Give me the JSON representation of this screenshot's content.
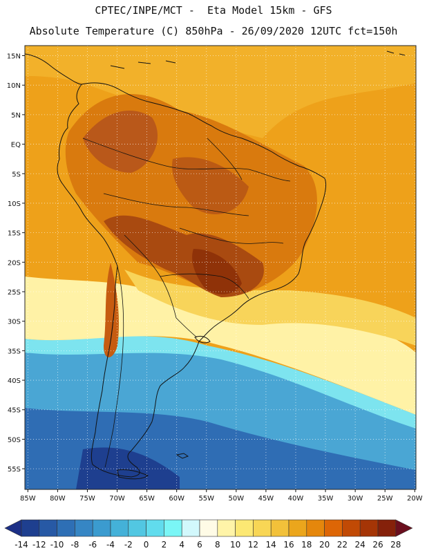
{
  "header": {
    "line1": "CPTEC/INPE/MCT -  Eta Model 15km - GFS",
    "line2": "Absolute Temperature (C) 850hPa - 26/09/2020 12UTC fct=150h"
  },
  "map": {
    "lat_labels": [
      "15N",
      "10N",
      "5N",
      "EQ",
      "5S",
      "10S",
      "15S",
      "20S",
      "25S",
      "30S",
      "35S",
      "40S",
      "45S",
      "50S",
      "55S"
    ],
    "lat_values": [
      15,
      10,
      5,
      0,
      -5,
      -10,
      -15,
      -20,
      -25,
      -30,
      -35,
      -40,
      -45,
      -50,
      -55
    ],
    "lon_labels": [
      "85W",
      "80W",
      "75W",
      "70W",
      "65W",
      "60W",
      "55W",
      "50W",
      "45W",
      "40W",
      "35W",
      "30W",
      "25W",
      "20W"
    ],
    "lon_values": [
      -85,
      -80,
      -75,
      -70,
      -65,
      -60,
      -55,
      -50,
      -45,
      -40,
      -35,
      -30,
      -25,
      -20
    ],
    "extent": {
      "lon_min": -85.5,
      "lon_max": -19.8,
      "lat_min": -58.5,
      "lat_max": 16.7
    }
  },
  "colorbar": {
    "labels": [
      "-14",
      "-12",
      "-10",
      "-8",
      "-6",
      "-4",
      "-2",
      "0",
      "2",
      "4",
      "6",
      "8",
      "10",
      "12",
      "14",
      "16",
      "18",
      "20",
      "22",
      "24",
      "26",
      "28"
    ],
    "colors": [
      "#1e3f8f",
      "#2759a5",
      "#2e6fb5",
      "#3686c4",
      "#3b9bcf",
      "#44b1d8",
      "#52c7e2",
      "#61dced",
      "#7af6f6",
      "#d2f8fc",
      "#fffbe6",
      "#fff4a8",
      "#fce873",
      "#f8d655",
      "#f2c13a",
      "#eba61c",
      "#e5870c",
      "#dd6606",
      "#c14a05",
      "#a53506",
      "#85210a"
    ],
    "under_color": "#1c2f86",
    "over_color": "#6b0f1e"
  },
  "legend_bands": {
    "hot_core": "#a94a10",
    "warm": "#d97a0e",
    "orange": "#eea11a",
    "yellow": "#f8d45a",
    "pale": "#fff2a6",
    "cyan": "#7de4ef",
    "blue": "#4aa6d4",
    "deep": "#2f6db4"
  }
}
